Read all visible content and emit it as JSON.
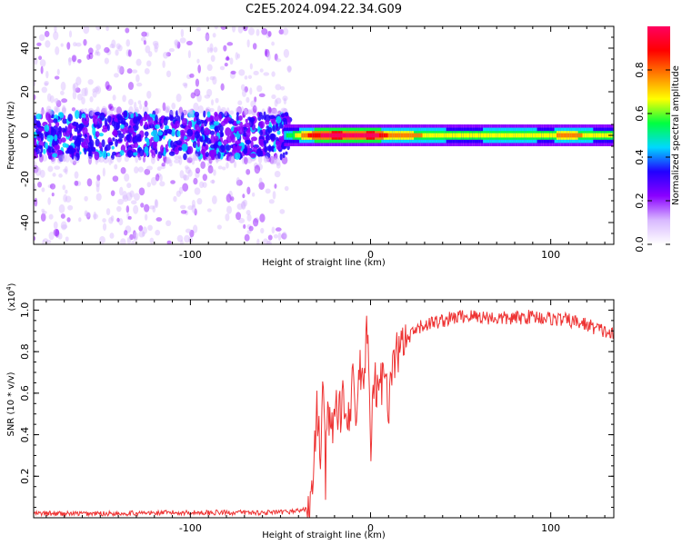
{
  "title": "C2E5.2024.094.22.34.G09",
  "chart_data": [
    {
      "type": "heatmap",
      "xlabel": "Height of straight line (km)",
      "ylabel": "Frequency (Hz)",
      "xlim": [
        -187,
        135
      ],
      "ylim": [
        -50,
        50
      ],
      "xticks": [
        -100,
        0,
        100
      ],
      "yticks": [
        -40,
        -20,
        0,
        20,
        40
      ],
      "description": "",
      "ridge": [
        {
          "x": -187,
          "amp": 0.12
        },
        {
          "x": -60,
          "amp": 0.15
        },
        {
          "x": -45,
          "amp": 0.45
        },
        {
          "x": -35,
          "amp": 0.75
        },
        {
          "x": -20,
          "amp": 0.95
        },
        {
          "x": -10,
          "amp": 0.85
        },
        {
          "x": 0,
          "amp": 0.95
        },
        {
          "x": 10,
          "amp": 0.7
        },
        {
          "x": 20,
          "amp": 0.65
        },
        {
          "x": 50,
          "amp": 0.55
        },
        {
          "x": 80,
          "amp": 0.62
        },
        {
          "x": 100,
          "amp": 0.55
        },
        {
          "x": 105,
          "amp": 0.7
        },
        {
          "x": 135,
          "amp": 0.5
        }
      ],
      "colorbar": {
        "label": "Normalized spectral amplitude",
        "ticks": [
          0.0,
          0.2,
          0.4,
          0.6,
          0.8
        ],
        "range": [
          0,
          1
        ],
        "colors": [
          "#ffffff",
          "#d8b8ff",
          "#8a00ff",
          "#2200ff",
          "#00d8ff",
          "#00ff40",
          "#ffff00",
          "#ff8000",
          "#ff0000",
          "#ff0060"
        ]
      }
    },
    {
      "type": "line",
      "xlabel": "Height of straight line (km)",
      "ylabel": "SNR (10 * v/v)",
      "y_multiplier": "(x10",
      "y_multiplier_exp": "4",
      "y_multiplier_close": ")",
      "xlim": [
        -187,
        135
      ],
      "ylim": [
        0,
        1.05
      ],
      "xticks": [
        -100,
        0,
        100
      ],
      "yticks": [
        0.2,
        0.4,
        0.6,
        0.8,
        1.0
      ],
      "series": [
        {
          "color": "#ee3333",
          "x": [
            -187,
            -150,
            -100,
            -50,
            -35,
            -32,
            -30,
            -28,
            -26,
            -25,
            -24,
            -22,
            -20,
            -18,
            -15,
            -12,
            -10,
            -8,
            -6,
            -4,
            -2,
            0,
            2,
            5,
            8,
            10,
            12,
            15,
            20,
            25,
            30,
            40,
            50,
            60,
            70,
            80,
            90,
            100,
            110,
            120,
            135
          ],
          "y": [
            0.02,
            0.02,
            0.025,
            0.025,
            0.04,
            0.1,
            0.55,
            0.3,
            0.7,
            0.2,
            0.6,
            0.35,
            0.55,
            0.45,
            0.6,
            0.5,
            0.65,
            0.45,
            0.75,
            0.55,
            1.0,
            0.3,
            0.65,
            0.6,
            0.75,
            0.55,
            0.7,
            0.8,
            0.85,
            0.9,
            0.93,
            0.95,
            0.97,
            0.97,
            0.96,
            0.96,
            0.97,
            0.96,
            0.95,
            0.93,
            0.88
          ]
        }
      ]
    }
  ]
}
